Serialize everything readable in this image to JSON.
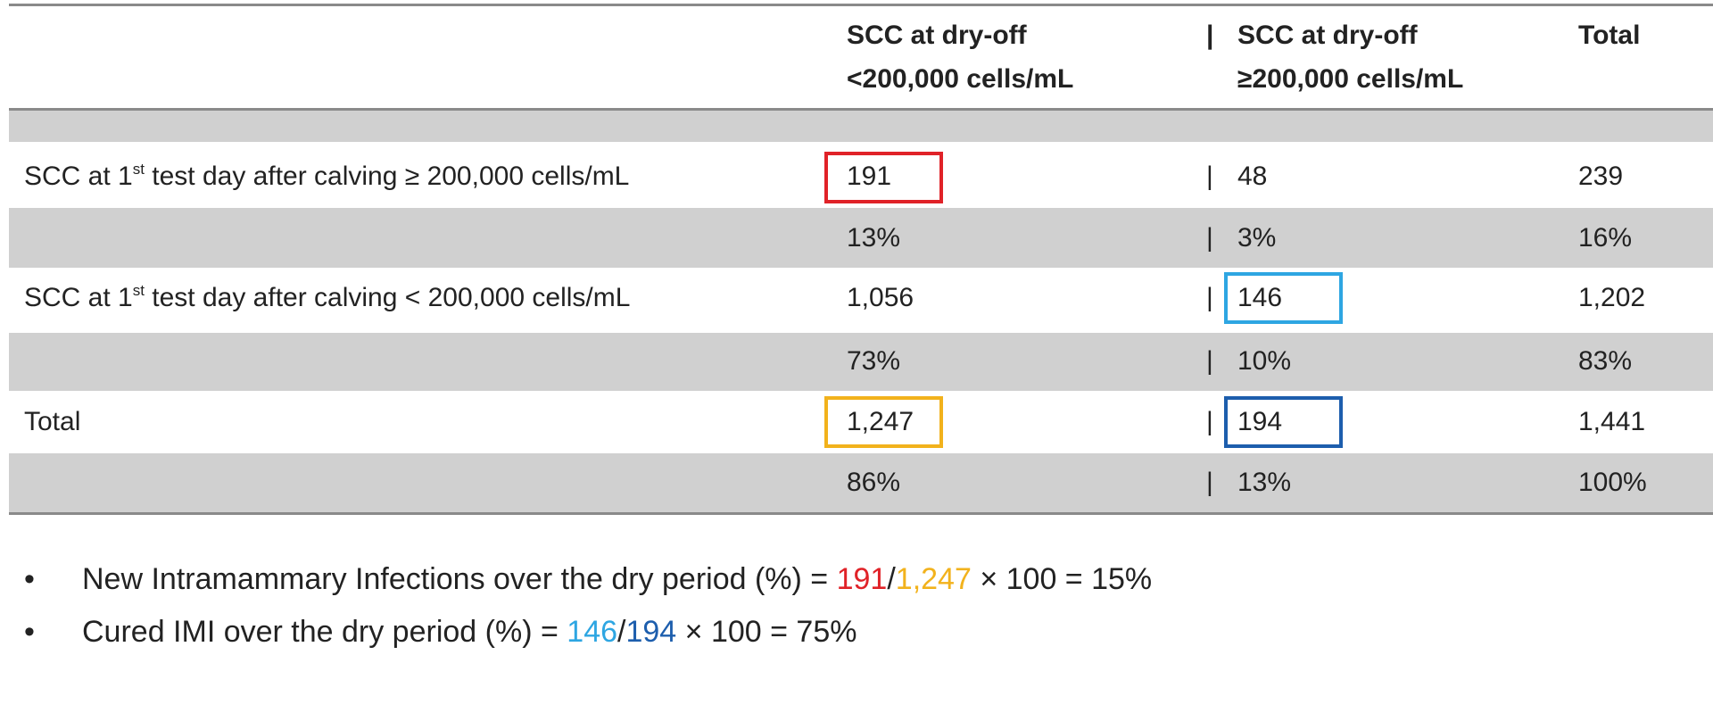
{
  "header": {
    "col1_line1": "SCC at dry-off",
    "col1_line2": "<200,000 cells/mL",
    "col2_line1": "SCC at dry-off",
    "col2_line2": "≥200,000 cells/mL",
    "total": "Total",
    "separator": "|"
  },
  "rows": [
    {
      "label_pre": "SCC at 1",
      "label_sup": "st",
      "label_post": " test day after calving ≥ 200,000 cells/mL",
      "c1": "191",
      "c2": "48",
      "total": "239"
    },
    {
      "c1": "13%",
      "c2": "3%",
      "total": "16%"
    },
    {
      "label_pre": "SCC at 1",
      "label_sup": "st",
      "label_post": " test day after calving < 200,000 cells/mL",
      "c1": "1,056",
      "c2": "146",
      "total": "1,202"
    },
    {
      "c1": "73%",
      "c2": "10%",
      "total": "83%"
    },
    {
      "label": "Total",
      "c1": "1,247",
      "c2": "194",
      "total": "1,441"
    },
    {
      "c1": "86%",
      "c2": "13%",
      "total": "100%"
    }
  ],
  "bullets": [
    {
      "marker": "•",
      "text": "New Intramammary Infections over the dry period (%) = ",
      "num": "191",
      "slash": "/",
      "den": "1,247",
      "tail": " × 100 = 15%"
    },
    {
      "marker": "•",
      "text": "Cured IMI over the dry period (%) = ",
      "num": "146",
      "slash": "/",
      "den": "194",
      "tail": " × 100 = 75%"
    }
  ],
  "colors": {
    "red": "#e02228",
    "yellow": "#f2b21c",
    "light_blue": "#2ea6e2",
    "dark_blue": "#1d5ead",
    "band": "#d0d0d0"
  }
}
